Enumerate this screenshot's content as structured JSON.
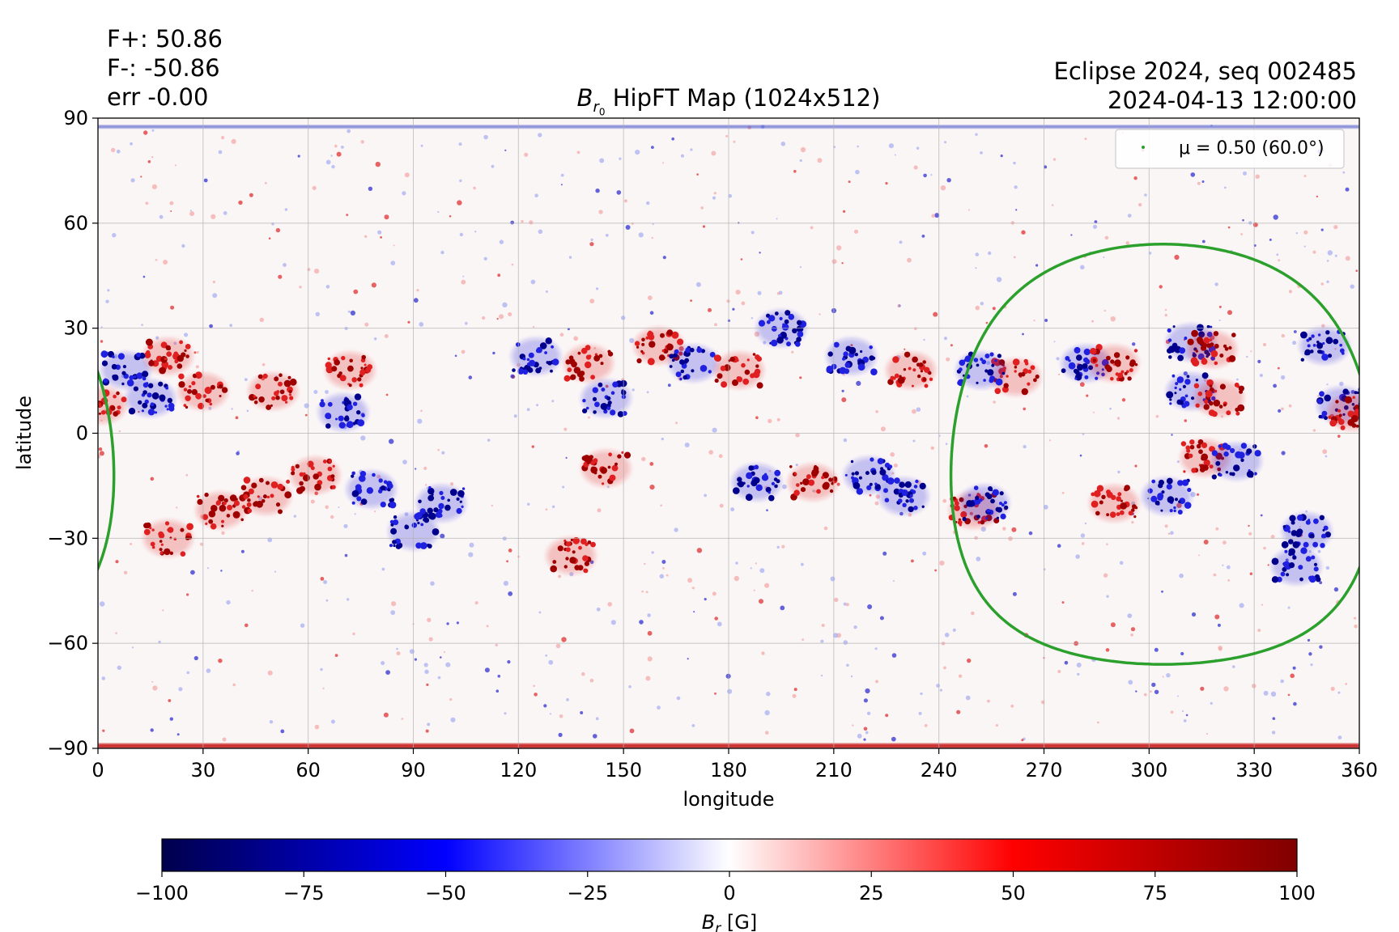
{
  "header": {
    "flux_pos": "F+: 50.86",
    "flux_neg": "F-: -50.86",
    "err": "err -0.00",
    "event": "Eclipse 2024, seq 002485",
    "datetime": "2024-04-13 12:00:00",
    "title_prefix": "B",
    "title_sub": "r",
    "title_subsub": "0",
    "title_rest": " HipFT Map (1024x512)"
  },
  "chart_data": {
    "type": "heatmap",
    "map": {
      "xlabel": "longitude",
      "ylabel": "latitude",
      "xlim": [
        0,
        360
      ],
      "ylim": [
        -90,
        90
      ],
      "xticks": [
        "0",
        "30",
        "60",
        "90",
        "120",
        "150",
        "180",
        "210",
        "240",
        "270",
        "300",
        "330",
        "360"
      ],
      "yticks": [
        "90",
        "60",
        "30",
        "0",
        "−30",
        "−60",
        "−90"
      ],
      "grid": true,
      "legend_label": "μ = 0.50 (60.0°)",
      "legend_location": "top-right",
      "contour_color": "#2ca02c",
      "contour_center_lon": 304,
      "contour_center_lat": -6,
      "contour_angular_radius_deg": 60,
      "active_regions": [
        {
          "lon": 20,
          "lat": 22,
          "polarity": "positive"
        },
        {
          "lon": 8,
          "lat": 18,
          "polarity": "negative"
        },
        {
          "lon": 30,
          "lat": 12,
          "polarity": "positive"
        },
        {
          "lon": 15,
          "lat": 10,
          "polarity": "negative"
        },
        {
          "lon": 50,
          "lat": 12,
          "polarity": "positive"
        },
        {
          "lon": 72,
          "lat": 18,
          "polarity": "positive"
        },
        {
          "lon": 70,
          "lat": 6,
          "polarity": "negative"
        },
        {
          "lon": 35,
          "lat": -22,
          "polarity": "positive"
        },
        {
          "lon": 48,
          "lat": -18,
          "polarity": "positive"
        },
        {
          "lon": 20,
          "lat": -30,
          "polarity": "positive"
        },
        {
          "lon": 62,
          "lat": -12,
          "polarity": "positive"
        },
        {
          "lon": 78,
          "lat": -16,
          "polarity": "negative"
        },
        {
          "lon": 98,
          "lat": -20,
          "polarity": "negative"
        },
        {
          "lon": 90,
          "lat": -28,
          "polarity": "negative"
        },
        {
          "lon": 125,
          "lat": 22,
          "polarity": "negative"
        },
        {
          "lon": 140,
          "lat": 20,
          "polarity": "positive"
        },
        {
          "lon": 145,
          "lat": 10,
          "polarity": "negative"
        },
        {
          "lon": 160,
          "lat": 25,
          "polarity": "positive"
        },
        {
          "lon": 170,
          "lat": 20,
          "polarity": "negative"
        },
        {
          "lon": 183,
          "lat": 18,
          "polarity": "positive"
        },
        {
          "lon": 145,
          "lat": -10,
          "polarity": "positive"
        },
        {
          "lon": 135,
          "lat": -35,
          "polarity": "positive"
        },
        {
          "lon": 188,
          "lat": -14,
          "polarity": "negative"
        },
        {
          "lon": 204,
          "lat": -14,
          "polarity": "positive"
        },
        {
          "lon": 220,
          "lat": -12,
          "polarity": "negative"
        },
        {
          "lon": 230,
          "lat": -18,
          "polarity": "negative"
        },
        {
          "lon": 215,
          "lat": 22,
          "polarity": "negative"
        },
        {
          "lon": 232,
          "lat": 18,
          "polarity": "positive"
        },
        {
          "lon": 195,
          "lat": 30,
          "polarity": "negative"
        },
        {
          "lon": 262,
          "lat": 16,
          "polarity": "positive"
        },
        {
          "lon": 252,
          "lat": 18,
          "polarity": "negative"
        },
        {
          "lon": 282,
          "lat": 20,
          "polarity": "negative"
        },
        {
          "lon": 290,
          "lat": 20,
          "polarity": "positive"
        },
        {
          "lon": 312,
          "lat": 26,
          "polarity": "negative"
        },
        {
          "lon": 318,
          "lat": 24,
          "polarity": "positive"
        },
        {
          "lon": 312,
          "lat": 12,
          "polarity": "negative"
        },
        {
          "lon": 320,
          "lat": 10,
          "polarity": "positive"
        },
        {
          "lon": 316,
          "lat": -7,
          "polarity": "positive"
        },
        {
          "lon": 325,
          "lat": -8,
          "polarity": "negative"
        },
        {
          "lon": 305,
          "lat": -18,
          "polarity": "negative"
        },
        {
          "lon": 290,
          "lat": -20,
          "polarity": "positive"
        },
        {
          "lon": 250,
          "lat": -22,
          "polarity": "positive"
        },
        {
          "lon": 253,
          "lat": -20,
          "polarity": "negative"
        },
        {
          "lon": 345,
          "lat": -28,
          "polarity": "negative"
        },
        {
          "lon": 342,
          "lat": -38,
          "polarity": "negative"
        },
        {
          "lon": 355,
          "lat": 8,
          "polarity": "negative"
        },
        {
          "lon": 358,
          "lat": 6,
          "polarity": "positive"
        },
        {
          "lon": 1,
          "lat": 8,
          "polarity": "positive"
        },
        {
          "lon": 350,
          "lat": 25,
          "polarity": "negative"
        }
      ]
    },
    "colorbar": {
      "label": "B_r [G]",
      "label_main": "B",
      "label_sub": "r",
      "label_unit": " [G]",
      "vmin": -100,
      "vmax": 100,
      "ticks": [
        "−100",
        "−75",
        "−50",
        "−25",
        "0",
        "25",
        "50",
        "75",
        "100"
      ],
      "colormap": "seismic",
      "stops": [
        "#00004c",
        "#0000ff",
        "#ffffff",
        "#ff0000",
        "#800000"
      ]
    }
  }
}
